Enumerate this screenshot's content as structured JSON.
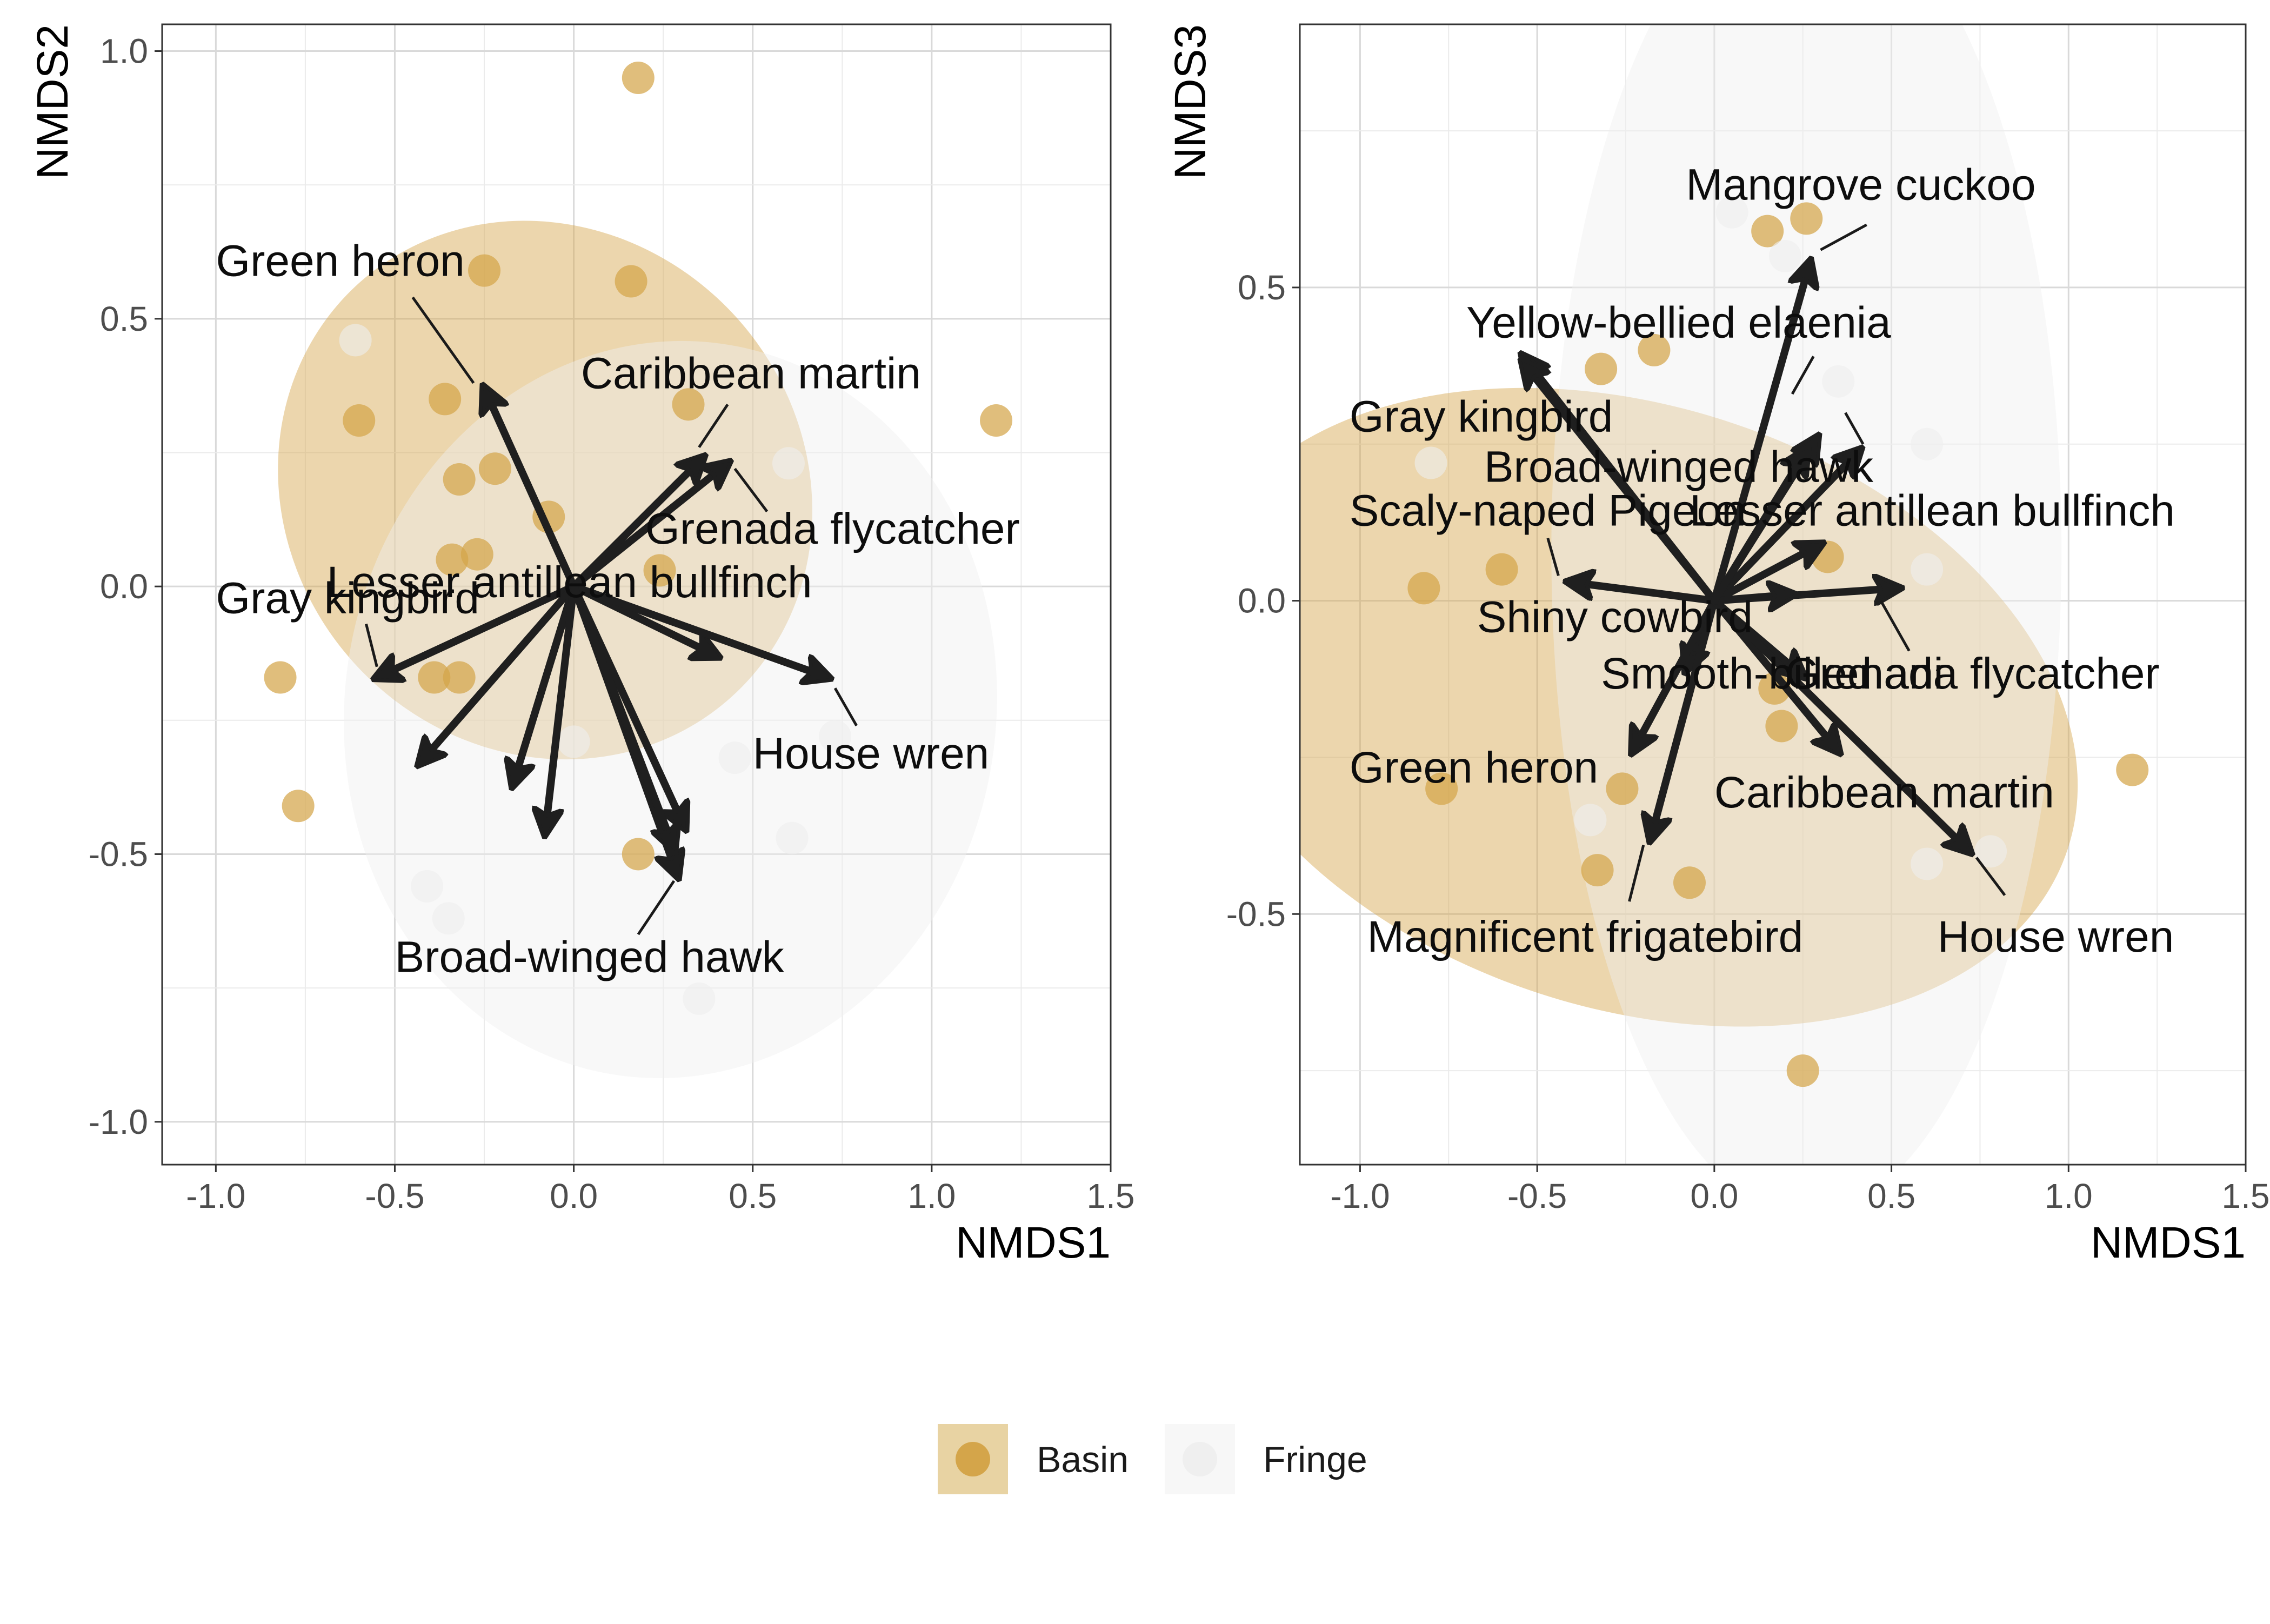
{
  "colors": {
    "basin": "#D4A54A",
    "basin_fill": "#D4A54A",
    "fringe": "#EFEFEF",
    "fringe_fill": "#EFEFEF",
    "arrow": "#1f1f1f",
    "grid": "#d9d9d9",
    "axis_text": "#4d4d4d"
  },
  "legend": {
    "placement": "bottom",
    "items": [
      {
        "label": "Basin",
        "color_key": "basin"
      },
      {
        "label": "Fringe",
        "color_key": "fringe"
      }
    ]
  },
  "chart_data": [
    {
      "type": "scatter",
      "title": "",
      "xlabel": "NMDS1",
      "ylabel": "NMDS2",
      "xlim": [
        -1.15,
        1.5
      ],
      "ylim": [
        -1.08,
        1.05
      ],
      "xticks": [
        -1.0,
        -0.5,
        0.0,
        0.5,
        1.0,
        1.5
      ],
      "xtick_labels": [
        "-1.0",
        "-0.5",
        "0.0",
        "0.5",
        "1.0",
        "1.5"
      ],
      "yticks": [
        -1.0,
        -0.5,
        0.0,
        0.5,
        1.0
      ],
      "ytick_labels": [
        "-1.0",
        "-0.5",
        "0.0",
        "0.5",
        "1.0"
      ],
      "grid": true,
      "ellipses": [
        {
          "group": "Basin",
          "center": [
            -0.08,
            0.18
          ],
          "radii": [
            0.72,
            0.52
          ],
          "angle_deg": 42
        },
        {
          "group": "Fringe",
          "center": [
            0.27,
            -0.23
          ],
          "radii": [
            0.91,
            0.69
          ],
          "angle_deg": -8
        }
      ],
      "series": [
        {
          "name": "Basin",
          "points": [
            [
              0.18,
              0.95
            ],
            [
              -0.25,
              0.59
            ],
            [
              0.16,
              0.57
            ],
            [
              -0.36,
              0.35
            ],
            [
              -0.6,
              0.31
            ],
            [
              1.18,
              0.31
            ],
            [
              0.32,
              0.34
            ],
            [
              -0.22,
              0.22
            ],
            [
              -0.32,
              0.2
            ],
            [
              -0.07,
              0.13
            ],
            [
              -0.34,
              0.05
            ],
            [
              -0.27,
              0.06
            ],
            [
              0.24,
              0.03
            ],
            [
              -0.82,
              -0.17
            ],
            [
              -0.39,
              -0.17
            ],
            [
              -0.32,
              -0.17
            ],
            [
              -0.77,
              -0.41
            ],
            [
              0.18,
              -0.5
            ]
          ]
        },
        {
          "name": "Fringe",
          "points": [
            [
              -0.61,
              0.46
            ],
            [
              0.6,
              0.23
            ],
            [
              0.0,
              -0.29
            ],
            [
              0.45,
              -0.32
            ],
            [
              0.61,
              -0.47
            ],
            [
              -0.41,
              -0.56
            ],
            [
              -0.35,
              -0.62
            ],
            [
              0.35,
              -0.77
            ],
            [
              0.73,
              -0.28
            ]
          ]
        }
      ],
      "arrows": [
        {
          "label": "Green heron",
          "end": [
            -0.25,
            0.37
          ],
          "label_pos": [
            -1.0,
            0.58
          ],
          "anchor": "start",
          "leader": [
            [
              -0.28,
              0.38
            ],
            [
              -0.45,
              0.54
            ]
          ]
        },
        {
          "label": "Caribbean martin",
          "end": [
            0.36,
            0.24
          ],
          "label_pos": [
            0.02,
            0.37
          ],
          "anchor": "start",
          "leader": [
            [
              0.35,
              0.26
            ],
            [
              0.43,
              0.34
            ]
          ]
        },
        {
          "label": "Grenada flycatcher",
          "end": [
            0.43,
            0.23
          ],
          "label_pos": [
            0.2,
            0.08
          ],
          "anchor": "start",
          "leader": [
            [
              0.45,
              0.22
            ],
            [
              0.54,
              0.14
            ]
          ]
        },
        {
          "label": "Lesser antillean bullfinch",
          "end": [
            0.4,
            -0.13
          ],
          "label_pos": [
            -0.69,
            -0.02
          ],
          "anchor": "start",
          "leader": null
        },
        {
          "label": "Gray kingbird",
          "end": [
            -0.55,
            -0.17
          ],
          "label_pos": [
            -1.0,
            -0.05
          ],
          "anchor": "start",
          "leader": [
            [
              -0.55,
              -0.15
            ],
            [
              -0.58,
              -0.07
            ]
          ]
        },
        {
          "label": "House wren",
          "end": [
            0.71,
            -0.17
          ],
          "label_pos": [
            0.5,
            -0.34
          ],
          "anchor": "start",
          "leader": [
            [
              0.73,
              -0.19
            ],
            [
              0.79,
              -0.26
            ]
          ]
        },
        {
          "label": "Broad-winged hawk",
          "end": [
            0.29,
            -0.54
          ],
          "label_pos": [
            -0.5,
            -0.72
          ],
          "anchor": "start",
          "leader": [
            [
              0.28,
              -0.55
            ],
            [
              0.18,
              -0.65
            ]
          ]
        },
        {
          "label": "",
          "end": [
            -0.43,
            -0.33
          ],
          "label_pos": null,
          "anchor": "start",
          "leader": null
        },
        {
          "label": "",
          "end": [
            -0.17,
            -0.37
          ],
          "label_pos": null,
          "anchor": "start",
          "leader": null
        },
        {
          "label": "",
          "end": [
            -0.08,
            -0.46
          ],
          "label_pos": null,
          "anchor": "start",
          "leader": null
        },
        {
          "label": "",
          "end": [
            0.31,
            -0.45
          ],
          "label_pos": null,
          "anchor": "start",
          "leader": null
        },
        {
          "label": "",
          "end": [
            0.28,
            -0.49
          ],
          "label_pos": null,
          "anchor": "start",
          "leader": null
        }
      ]
    },
    {
      "type": "scatter",
      "title": "",
      "xlabel": "NMDS1",
      "ylabel": "NMDS3",
      "xlim": [
        -1.17,
        1.5
      ],
      "ylim": [
        -0.9,
        0.92
      ],
      "xticks": [
        -1.0,
        -0.5,
        0.0,
        0.5,
        1.0,
        1.5
      ],
      "xtick_labels": [
        "-1.0",
        "-0.5",
        "0.0",
        "0.5",
        "1.0",
        "1.5"
      ],
      "yticks": [
        -0.5,
        0.0,
        0.5
      ],
      "ytick_labels": [
        "-0.5",
        "0.0",
        "0.5"
      ],
      "grid": true,
      "ellipses": [
        {
          "group": "Basin",
          "center": [
            -0.23,
            -0.17
          ],
          "radii": [
            0.85,
            0.73
          ],
          "angle_deg": 72
        },
        {
          "group": "Fringe",
          "center": [
            0.26,
            0.08
          ],
          "radii": [
            0.72,
            1.06
          ],
          "angle_deg": 0
        }
      ],
      "series": [
        {
          "name": "Basin",
          "points": [
            [
              0.15,
              0.59
            ],
            [
              0.26,
              0.61
            ],
            [
              -0.32,
              0.37
            ],
            [
              -0.17,
              0.4
            ],
            [
              -0.6,
              0.05
            ],
            [
              -0.82,
              0.02
            ],
            [
              0.32,
              0.07
            ],
            [
              0.17,
              -0.14
            ],
            [
              0.19,
              -0.2
            ],
            [
              -0.26,
              -0.3
            ],
            [
              -0.77,
              -0.3
            ],
            [
              -0.33,
              -0.43
            ],
            [
              -0.07,
              -0.45
            ],
            [
              1.18,
              -0.27
            ],
            [
              0.25,
              -0.75
            ]
          ]
        },
        {
          "name": "Fringe",
          "points": [
            [
              -0.8,
              0.22
            ],
            [
              0.35,
              0.35
            ],
            [
              0.6,
              0.25
            ],
            [
              0.6,
              0.05
            ],
            [
              0.2,
              0.55
            ],
            [
              -0.35,
              -0.35
            ],
            [
              0.78,
              -0.4
            ],
            [
              0.6,
              -0.42
            ],
            [
              0.05,
              0.62
            ]
          ]
        }
      ],
      "arrows": [
        {
          "label": "Mangrove cuckoo",
          "end": [
            0.27,
            0.54
          ],
          "label_pos": [
            -0.08,
            0.64
          ],
          "anchor": "start",
          "leader": [
            [
              0.3,
              0.56
            ],
            [
              0.43,
              0.6
            ]
          ]
        },
        {
          "label": "Yellow-bellied elaenia",
          "end": [
            -0.54,
            0.39
          ],
          "label_pos": [
            -0.7,
            0.42
          ],
          "anchor": "start",
          "leader": [
            [
              0.22,
              0.33
            ],
            [
              0.28,
              0.39
            ]
          ]
        },
        {
          "label": "Gray kingbird",
          "end": [
            -0.54,
            0.38
          ],
          "label_pos": [
            -1.03,
            0.27
          ],
          "anchor": "start",
          "leader": null
        },
        {
          "label": "Broad-winged hawk",
          "end": [
            0.41,
            0.24
          ],
          "label_pos": [
            -0.65,
            0.19
          ],
          "anchor": "start",
          "leader": [
            [
              0.42,
              0.25
            ],
            [
              0.37,
              0.3
            ]
          ]
        },
        {
          "label": "Scaly-naped Pigeon",
          "end": [
            -0.41,
            0.03
          ],
          "label_pos": [
            -1.03,
            0.12
          ],
          "anchor": "start",
          "leader": [
            [
              -0.44,
              0.04
            ],
            [
              -0.47,
              0.1
            ]
          ]
        },
        {
          "label": "Lesser antillean bullfinch",
          "end": [
            0.29,
            0.26
          ],
          "label_pos": [
            -0.07,
            0.12
          ],
          "anchor": "start",
          "leader": null
        },
        {
          "label": "Shiny cowbird",
          "end": [
            -0.08,
            -0.11
          ],
          "label_pos": [
            -0.67,
            -0.05
          ],
          "anchor": "start",
          "leader": null
        },
        {
          "label": "Smooth-billed ani",
          "end": [
            0.25,
            -0.12
          ],
          "label_pos": [
            -0.32,
            -0.14
          ],
          "anchor": "start",
          "leader": null
        },
        {
          "label": "Grenada flycatcher",
          "end": [
            0.52,
            0.02
          ],
          "label_pos": [
            0.2,
            -0.14
          ],
          "anchor": "start",
          "leader": [
            [
              0.47,
              0.0
            ],
            [
              0.55,
              -0.08
            ]
          ]
        },
        {
          "label": "Green heron",
          "end": [
            -0.23,
            -0.24
          ],
          "label_pos": [
            -1.03,
            -0.29
          ],
          "anchor": "start",
          "leader": null
        },
        {
          "label": "Caribbean martin",
          "end": [
            0.35,
            -0.24
          ],
          "label_pos": [
            0.0,
            -0.33
          ],
          "anchor": "start",
          "leader": null
        },
        {
          "label": "Magnificent frigatebird",
          "end": [
            -0.18,
            -0.38
          ],
          "label_pos": [
            -0.98,
            -0.56
          ],
          "anchor": "start",
          "leader": [
            [
              -0.2,
              -0.39
            ],
            [
              -0.24,
              -0.48
            ]
          ]
        },
        {
          "label": "House wren",
          "end": [
            0.72,
            -0.4
          ],
          "label_pos": [
            0.63,
            -0.56
          ],
          "anchor": "start",
          "leader": [
            [
              0.74,
              -0.41
            ],
            [
              0.82,
              -0.47
            ]
          ]
        },
        {
          "label": "",
          "end": [
            0.3,
            0.09
          ],
          "label_pos": null,
          "anchor": "start",
          "leader": null
        },
        {
          "label": "",
          "end": [
            0.22,
            0.01
          ],
          "label_pos": null,
          "anchor": "start",
          "leader": null
        },
        {
          "label": "",
          "end": [
            0.26,
            0.24
          ],
          "label_pos": null,
          "anchor": "start",
          "leader": null
        }
      ]
    }
  ]
}
